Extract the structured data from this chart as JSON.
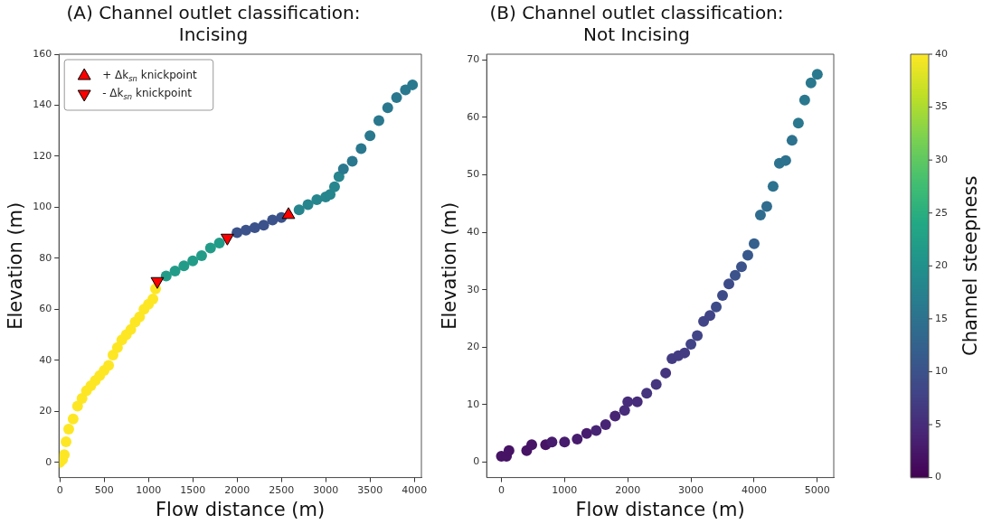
{
  "chart_data": [
    {
      "type": "scatter",
      "title": "(A) Channel outlet classification: Incising",
      "xlabel": "Flow distance (m)",
      "ylabel": "Elevation (m)",
      "xlim": [
        -10,
        4080
      ],
      "ylim": [
        -6,
        160
      ],
      "xticks": [
        0,
        500,
        1000,
        1500,
        2000,
        2500,
        3000,
        3500,
        4000
      ],
      "yticks": [
        0,
        20,
        40,
        60,
        80,
        100,
        120,
        140,
        160
      ],
      "grid": false,
      "legend": "top left",
      "marker": "circle",
      "series": [
        {
          "x": [
            0,
            30,
            50,
            70,
            100,
            150,
            200,
            250,
            300,
            350,
            400,
            450,
            500,
            550,
            600,
            650,
            700,
            750,
            800,
            850,
            900,
            950,
            1000,
            1050,
            1080,
            1100,
            1200,
            1300,
            1400,
            1500,
            1600,
            1700,
            1800,
            1900,
            2000,
            2100,
            2200,
            2300,
            2400,
            2500,
            2580,
            2700,
            2800,
            2900,
            2950,
            3000,
            3050,
            3100,
            3150,
            3200,
            3300,
            3400,
            3500,
            3600,
            3700,
            3800,
            3900,
            3980
          ],
          "values": [
            0,
            1,
            3,
            8,
            13,
            17,
            22,
            25,
            28,
            30,
            32,
            34,
            36,
            38,
            42,
            45,
            48,
            50,
            52,
            55,
            57,
            60,
            62,
            64,
            68,
            null,
            73,
            75,
            77,
            79,
            81,
            84,
            86,
            null,
            90,
            91,
            92,
            93,
            95,
            96,
            null,
            99,
            101,
            103,
            null,
            104,
            105,
            108,
            112,
            115,
            118,
            123,
            128,
            134,
            139,
            143,
            146,
            148
          ],
          "colors": [
            "#fde725",
            "#fde725",
            "#fde725",
            "#fde725",
            "#fde725",
            "#fde725",
            "#fde725",
            "#fde725",
            "#fde725",
            "#fde725",
            "#fde725",
            "#fde725",
            "#fde725",
            "#fde725",
            "#fde725",
            "#fde725",
            "#fde725",
            "#fde725",
            "#fde725",
            "#fde725",
            "#fde725",
            "#fde725",
            "#fde725",
            "#fde725",
            "#fde725",
            "#229c88",
            "#229c88",
            "#229c88",
            "#229c88",
            "#229c88",
            "#229c88",
            "#229c88",
            "#229c88",
            "#3b528a",
            "#3b528a",
            "#3b528a",
            "#3b528a",
            "#3b528a",
            "#3b528a",
            "#3b528a",
            "#26858d",
            "#26858d",
            "#26858d",
            "#26858d",
            "#26858d",
            "#26858d",
            "#26858d",
            "#26858d",
            "#26858d",
            "#2a788e",
            "#2a788e",
            "#2a788e",
            "#2a788e",
            "#2a788e",
            "#2a788e",
            "#2a788e",
            "#2a788e",
            "#2a788e"
          ]
        },
        {
          "name": "+ Δk$_{sn}$ knickpoint",
          "color": "#ff0000",
          "marker": "triangle",
          "x": [
            2580
          ],
          "values": [
            97
          ]
        },
        {
          "name": "- Δk$_{sn}$ knickpoint",
          "color": "#ff0000",
          "marker": "triangle_down",
          "x": [
            1100,
            1890
          ],
          "values": [
            71,
            88
          ]
        }
      ]
    },
    {
      "type": "scatter",
      "title": "(B) Channel outlet classification: Not Incising",
      "xlabel": "Flow distance (m)",
      "ylabel": "Elevation (m)",
      "xlim": [
        -233,
        5260
      ],
      "ylim": [
        -2.7,
        71
      ],
      "xticks": [
        0,
        1000,
        2000,
        3000,
        4000,
        5000
      ],
      "yticks": [
        0,
        10,
        20,
        30,
        40,
        50,
        60,
        70
      ],
      "clim": [
        0,
        40
      ],
      "cticks": [
        0,
        5,
        10,
        15,
        20,
        25,
        30,
        35,
        40
      ],
      "clabel": "Channel steepness",
      "grid": false,
      "marker": "circle",
      "series": [
        {
          "x": [
            0,
            80,
            120,
            400,
            480,
            700,
            800,
            1000,
            1200,
            1350,
            1500,
            1650,
            1800,
            1950,
            2000,
            2150,
            2300,
            2450,
            2600,
            2700,
            2800,
            2900,
            3000,
            3100,
            3200,
            3300,
            3400,
            3500,
            3600,
            3700,
            3800,
            3900,
            4000,
            4100,
            4200,
            4300,
            4400,
            4500,
            4600,
            4700,
            4800,
            4900,
            5000
          ],
          "values": [
            1,
            1,
            2,
            2,
            3,
            3,
            3.5,
            3.5,
            4,
            5,
            5.5,
            6.5,
            8,
            9,
            10.5,
            10.5,
            12,
            13.5,
            15.5,
            18,
            18.5,
            19,
            20.5,
            22,
            24.5,
            25.5,
            27,
            29,
            31,
            32.5,
            34,
            36,
            38,
            43,
            44.5,
            48,
            52,
            52.5,
            56,
            59,
            63,
            66,
            67.5
          ],
          "cvalues": [
            2,
            2,
            2,
            2,
            2,
            2,
            3,
            3,
            3,
            3,
            4,
            4,
            4,
            5,
            5,
            5,
            6,
            6,
            6,
            7,
            7,
            7,
            8,
            8,
            8,
            8,
            9,
            9,
            9,
            10,
            10,
            11,
            12,
            14,
            14,
            15,
            15,
            15,
            15,
            16,
            16,
            16,
            16
          ]
        }
      ]
    }
  ]
}
